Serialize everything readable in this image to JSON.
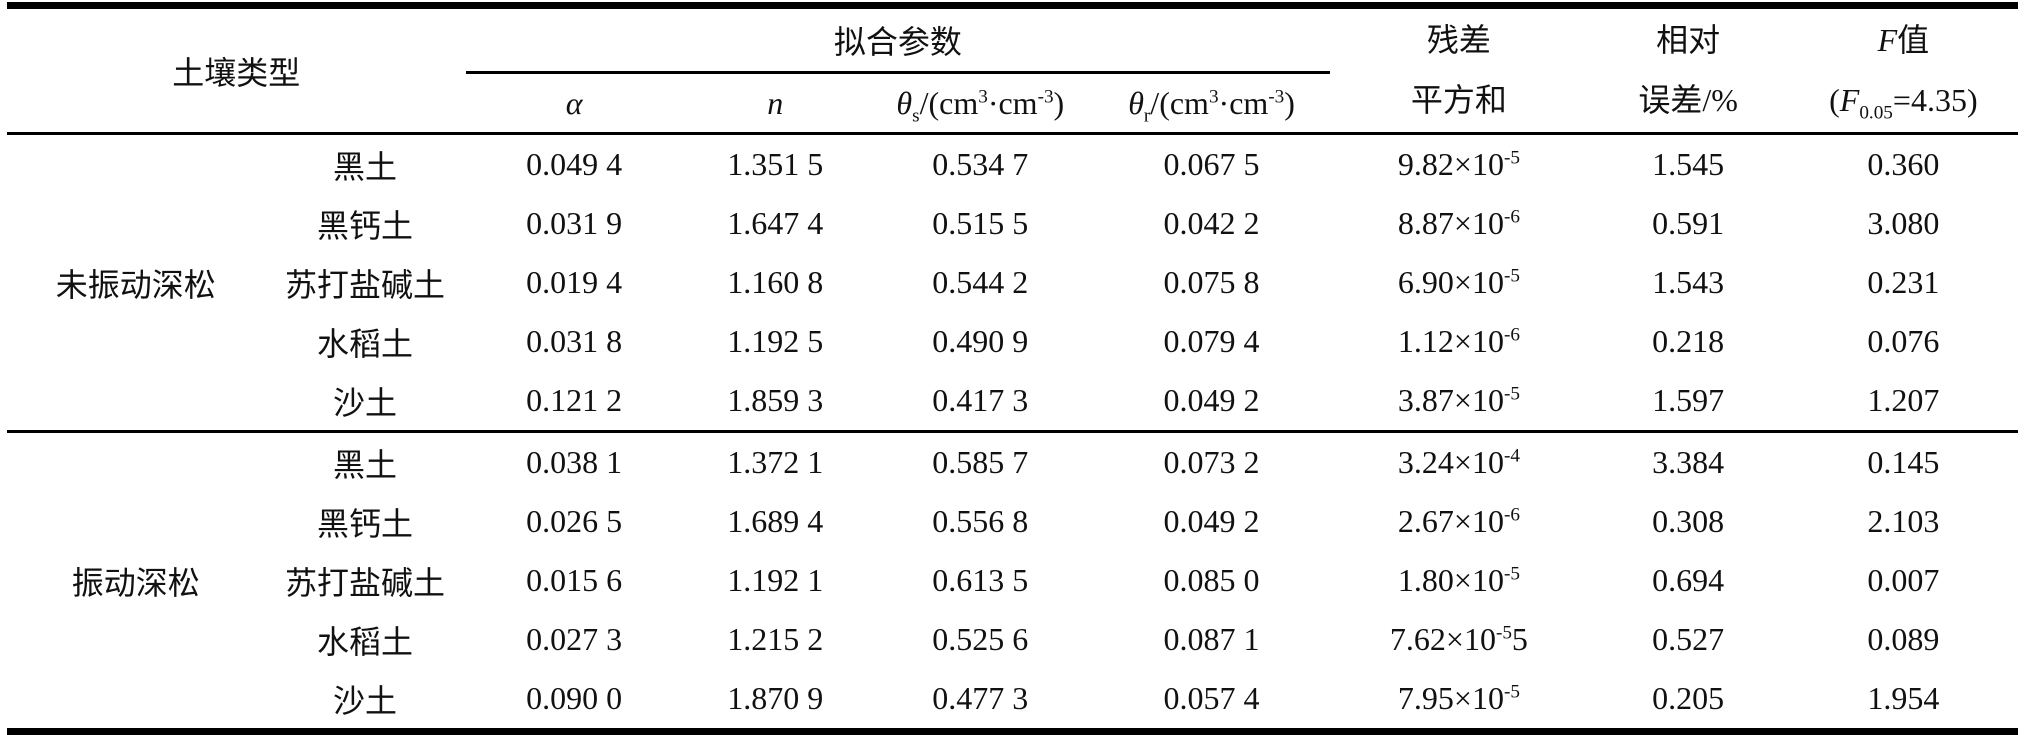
{
  "page": {
    "background": "#ffffff",
    "text_color": "#111111",
    "rule_color": "#000000"
  },
  "table": {
    "header": {
      "soil_type": "土壤类型",
      "fit_params": "拟合参数",
      "alpha": "α",
      "n": "n",
      "theta_s_parts": [
        "θ",
        "s",
        "/(cm",
        "3",
        "·cm",
        "-3",
        ")"
      ],
      "theta_r_parts": [
        "θ",
        "r",
        "/(cm",
        "3",
        "·cm",
        "-3",
        ")"
      ],
      "residual_line1": "残差",
      "residual_line2": "平方和",
      "relative_line1": "相对",
      "relative_line2": "误差/%",
      "f_line1_letter": "F",
      "f_line1_cn": "值",
      "f_line2_pre": "(",
      "f_line2_letter": "F",
      "f_line2_sub": "0.05",
      "f_line2_post": "=4.35)"
    },
    "groups": [
      {
        "treatment": "未振动深松",
        "rows": [
          {
            "soil": "黑土",
            "alpha": "0.049 4",
            "n": "1.351 5",
            "theta_s": "0.534 7",
            "theta_r": "0.067 5",
            "rss_base": "9.82×10",
            "rss_exp": "-5",
            "rss_tail": "",
            "rel_err": "1.545",
            "f": "0.360"
          },
          {
            "soil": "黑钙土",
            "alpha": "0.031 9",
            "n": "1.647 4",
            "theta_s": "0.515 5",
            "theta_r": "0.042 2",
            "rss_base": "8.87×10",
            "rss_exp": "-6",
            "rss_tail": "",
            "rel_err": "0.591",
            "f": "3.080"
          },
          {
            "soil": "苏打盐碱土",
            "alpha": "0.019 4",
            "n": "1.160 8",
            "theta_s": "0.544 2",
            "theta_r": "0.075 8",
            "rss_base": "6.90×10",
            "rss_exp": "-5",
            "rss_tail": "",
            "rel_err": "1.543",
            "f": "0.231"
          },
          {
            "soil": "水稻土",
            "alpha": "0.031 8",
            "n": "1.192 5",
            "theta_s": "0.490 9",
            "theta_r": "0.079 4",
            "rss_base": "1.12×10",
            "rss_exp": "-6",
            "rss_tail": "",
            "rel_err": "0.218",
            "f": "0.076"
          },
          {
            "soil": "沙土",
            "alpha": "0.121 2",
            "n": "1.859 3",
            "theta_s": "0.417 3",
            "theta_r": "0.049 2",
            "rss_base": "3.87×10",
            "rss_exp": "-5",
            "rss_tail": "",
            "rel_err": "1.597",
            "f": "1.207"
          }
        ]
      },
      {
        "treatment": "振动深松",
        "rows": [
          {
            "soil": "黑土",
            "alpha": "0.038 1",
            "n": "1.372 1",
            "theta_s": "0.585 7",
            "theta_r": "0.073 2",
            "rss_base": "3.24×10",
            "rss_exp": "-4",
            "rss_tail": "",
            "rel_err": "3.384",
            "f": "0.145"
          },
          {
            "soil": "黑钙土",
            "alpha": "0.026 5",
            "n": "1.689 4",
            "theta_s": "0.556 8",
            "theta_r": "0.049 2",
            "rss_base": "2.67×10",
            "rss_exp": "-6",
            "rss_tail": "",
            "rel_err": "0.308",
            "f": "2.103"
          },
          {
            "soil": "苏打盐碱土",
            "alpha": "0.015 6",
            "n": "1.192 1",
            "theta_s": "0.613 5",
            "theta_r": "0.085 0",
            "rss_base": "1.80×10",
            "rss_exp": "-5",
            "rss_tail": "",
            "rel_err": "0.694",
            "f": "0.007"
          },
          {
            "soil": "水稻土",
            "alpha": "0.027 3",
            "n": "1.215 2",
            "theta_s": "0.525 6",
            "theta_r": "0.087 1",
            "rss_base": "7.62×10",
            "rss_exp": "-5",
            "rss_tail": "5",
            "rel_err": "0.527",
            "f": "0.089"
          },
          {
            "soil": "沙土",
            "alpha": "0.090 0",
            "n": "1.870 9",
            "theta_s": "0.477 3",
            "theta_r": "0.057 4",
            "rss_base": "7.95×10",
            "rss_exp": "-5",
            "rss_tail": "",
            "rel_err": "0.205",
            "f": "1.954"
          }
        ]
      }
    ]
  }
}
